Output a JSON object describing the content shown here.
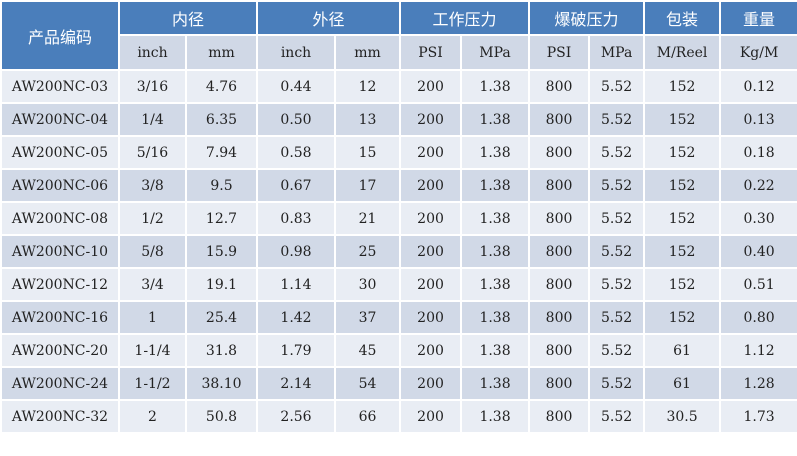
{
  "header": {
    "code": "产品编码",
    "groups": [
      "内径",
      "外径",
      "工作压力",
      "爆破压力",
      "包装",
      "重量"
    ],
    "sub": [
      "inch",
      "mm",
      "inch",
      "mm",
      "PSI",
      "MPa",
      "PSI",
      "MPa",
      "M/Reel",
      "Kg/M"
    ]
  },
  "rows": [
    [
      "AW200NC-03",
      "3/16",
      "4.76",
      "0.44",
      "12",
      "200",
      "1.38",
      "800",
      "5.52",
      "152",
      "0.12"
    ],
    [
      "AW200NC-04",
      "1/4",
      "6.35",
      "0.50",
      "13",
      "200",
      "1.38",
      "800",
      "5.52",
      "152",
      "0.13"
    ],
    [
      "AW200NC-05",
      "5/16",
      "7.94",
      "0.58",
      "15",
      "200",
      "1.38",
      "800",
      "5.52",
      "152",
      "0.18"
    ],
    [
      "AW200NC-06",
      "3/8",
      "9.5",
      "0.67",
      "17",
      "200",
      "1.38",
      "800",
      "5.52",
      "152",
      "0.22"
    ],
    [
      "AW200NC-08",
      "1/2",
      "12.7",
      "0.83",
      "21",
      "200",
      "1.38",
      "800",
      "5.52",
      "152",
      "0.30"
    ],
    [
      "AW200NC-10",
      "5/8",
      "15.9",
      "0.98",
      "25",
      "200",
      "1.38",
      "800",
      "5.52",
      "152",
      "0.40"
    ],
    [
      "AW200NC-12",
      "3/4",
      "19.1",
      "1.14",
      "30",
      "200",
      "1.38",
      "800",
      "5.52",
      "152",
      "0.51"
    ],
    [
      "AW200NC-16",
      "1",
      "25.4",
      "1.42",
      "37",
      "200",
      "1.38",
      "800",
      "5.52",
      "152",
      "0.80"
    ],
    [
      "AW200NC-20",
      "1-1/4",
      "31.8",
      "1.79",
      "45",
      "200",
      "1.38",
      "800",
      "5.52",
      "61",
      "1.12"
    ],
    [
      "AW200NC-24",
      "1-1/2",
      "38.10",
      "2.14",
      "54",
      "200",
      "1.38",
      "800",
      "5.52",
      "61",
      "1.28"
    ],
    [
      "AW200NC-32",
      "2",
      "50.8",
      "2.56",
      "66",
      "200",
      "1.38",
      "800",
      "5.52",
      "30.5",
      "1.73"
    ]
  ]
}
